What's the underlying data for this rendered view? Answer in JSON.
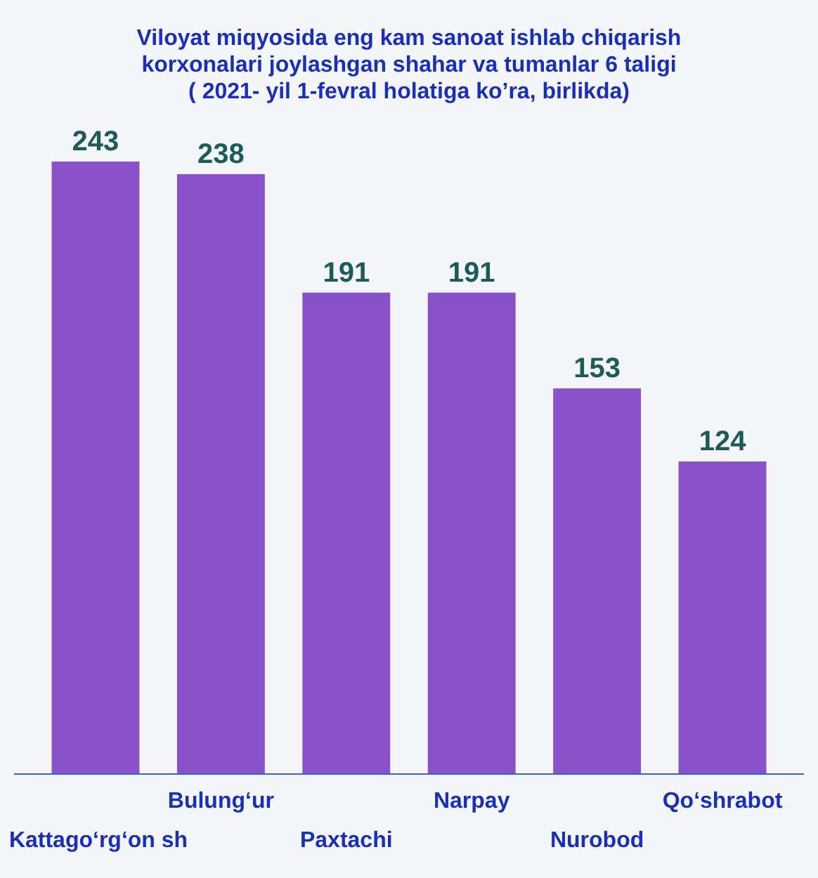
{
  "chart_data": {
    "type": "bar",
    "title": "Viloyat miqyosida eng kam sanoat ishlab chiqarish korxonalari joylashgan shahar va tumanlar 6 taligi",
    "subtitle": "( 2021- yil 1-fevral holatiga koʼra, birlikda)",
    "categories": [
      "Kattagoʻrgʻon sh",
      "Bulungʻur",
      "Paxtachi",
      "Narpay",
      "Nurobod",
      "Qoʻshrabot"
    ],
    "values": [
      243,
      238,
      191,
      191,
      153,
      124
    ],
    "color": "#8a52c8",
    "data_labels": true
  }
}
